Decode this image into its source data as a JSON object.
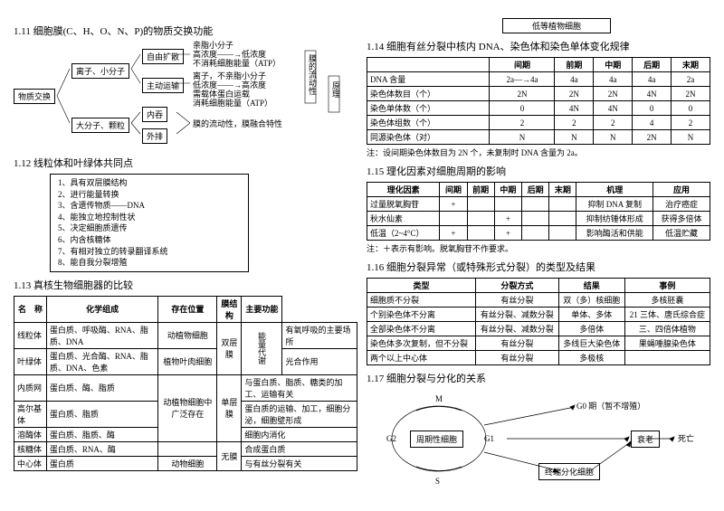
{
  "left": {
    "s111": {
      "title": "1.11 细胞膜(C、H、O、N、P)的物质交换功能",
      "root": "物质交换",
      "b1": "离子、小分子",
      "b2": "大分子、颗粒",
      "b1a": "自由扩散",
      "b1b": "主动运输",
      "b2a": "内吞",
      "b2b": "外排",
      "t1": "亲脂小分子\n高浓度——→低浓度\n不消耗细胞能量（ATP）",
      "t2": "离子，不亲脂小分子\n低浓度——→高浓度\n需载体蛋白运载\n消耗细胞能量（ATP）",
      "t3": "膜的流动性，膜融合特性",
      "side": "膜的流动性",
      "side2": "原理"
    },
    "s112": {
      "title": "1.12 线粒体和叶绿体共同点",
      "items": [
        "1、具有双层膜结构",
        "2、进行能量转换",
        "3、含遗传物质——DNA",
        "4、能独立地控制性状",
        "5、决定细胞质遗传",
        "6、内含核糖体",
        "7、有相对独立的转录翻译系统",
        "8、能自我分裂增殖"
      ]
    },
    "s113": {
      "title": "1.13 真核生物细胞器的比较",
      "headers": [
        "名　称",
        "化学组成",
        "存在位置",
        "膜结构",
        "主要功能"
      ],
      "rows": [
        [
          "线粒体",
          "蛋白质、呼吸酶、RNA、脂质、DNA",
          "动植物细胞",
          "双层膜",
          "有氧呼吸的主要场所"
        ],
        [
          "叶绿体",
          "蛋白质、光合酶、RNA、脂质、DNA、色素",
          "植物叶肉细胞",
          "",
          "光合作用"
        ],
        [
          "内质网",
          "蛋白质、酶、脂质",
          "",
          "",
          "与蛋白质、脂质、糖类的加工、运输有关"
        ],
        [
          "高尔基体",
          "蛋白质、脂质",
          "动植物细胞中广泛存在",
          "单层膜",
          "蛋白质的运输、加工，细胞分泌，细胞壁形成"
        ],
        [
          "溶酶体",
          "蛋白质、脂质、酶",
          "",
          "",
          "细胞内消化"
        ],
        [
          "核糖体",
          "蛋白质、RNA、酶",
          "",
          "无膜",
          "合成蛋白质"
        ],
        [
          "中心体",
          "蛋白质",
          "动物细胞",
          "",
          "与有丝分裂有关"
        ]
      ],
      "energy": "能量代谢"
    }
  },
  "right": {
    "top_label": "低等植物细胞",
    "s114": {
      "title": "1.14 细胞有丝分裂中核内 DNA、染色体和染色单体变化规律",
      "headers": [
        "",
        "间期",
        "前期",
        "中期",
        "后期",
        "末期"
      ],
      "rows": [
        [
          "DNA 含量",
          "2a—→4a",
          "4a",
          "4a",
          "4a",
          "2a"
        ],
        [
          "染色体数目（个）",
          "2N",
          "2N",
          "2N",
          "4N",
          "2N"
        ],
        [
          "染色单体数（个）",
          "0",
          "4N",
          "4N",
          "0",
          "0"
        ],
        [
          "染色体组数（个）",
          "2",
          "2",
          "2",
          "4",
          "2"
        ],
        [
          "同源染色体（对）",
          "N",
          "N",
          "N",
          "2N",
          "N"
        ]
      ],
      "note": "注：设间期染色体数目为 2N 个，未复制时 DNA 含量为 2a。"
    },
    "s115": {
      "title": "1.15 理化因素对细胞周期的影响",
      "headers": [
        "理化因素",
        "间期",
        "前期",
        "中期",
        "后期",
        "末期",
        "机理",
        "应用"
      ],
      "rows": [
        [
          "过量脱氧胸苷",
          "+",
          "",
          "",
          "",
          "",
          "抑制 DNA 复制",
          "治疗癌症"
        ],
        [
          "秋水仙素",
          "",
          "",
          "+",
          "",
          "",
          "抑制纺锤体形成",
          "获得多倍体"
        ],
        [
          "低温（2~4°C）",
          "+",
          "",
          "+",
          "",
          "",
          "影响酶活和供能",
          "低温贮藏"
        ]
      ],
      "note": "注：＋表示有影响。脱氧胸苷不作要求。"
    },
    "s116": {
      "title": "1.16 细胞分裂异常（或特殊形式分裂）的类型及结果",
      "headers": [
        "类型",
        "分裂方式",
        "结果",
        "事例"
      ],
      "rows": [
        [
          "细胞质不分裂",
          "有丝分裂",
          "双（多）核细胞",
          "多核胚囊"
        ],
        [
          "个别染色体不分离",
          "有丝分裂、减数分裂",
          "单体、多体",
          "21 三体、唐氏综合症"
        ],
        [
          "全部染色体不分离",
          "有丝分裂、减数分裂",
          "多倍体",
          "三、四倍体植物"
        ],
        [
          "染色体多次复制，但不分裂",
          "有丝分裂",
          "多线巨大染色体",
          "果蝇唾腺染色体"
        ],
        [
          "两个以上中心体",
          "有丝分裂",
          "多极核",
          "　"
        ]
      ]
    },
    "s117": {
      "title": "1.17 细胞分裂与分化的关系",
      "center": "周期性细胞",
      "g0": "G0 期（暂不增殖）",
      "term": "终端分化细胞",
      "age": "衰老",
      "die": "死亡",
      "labels": {
        "m": "M",
        "g1": "G1",
        "g2": "G2",
        "s": "S"
      }
    }
  }
}
